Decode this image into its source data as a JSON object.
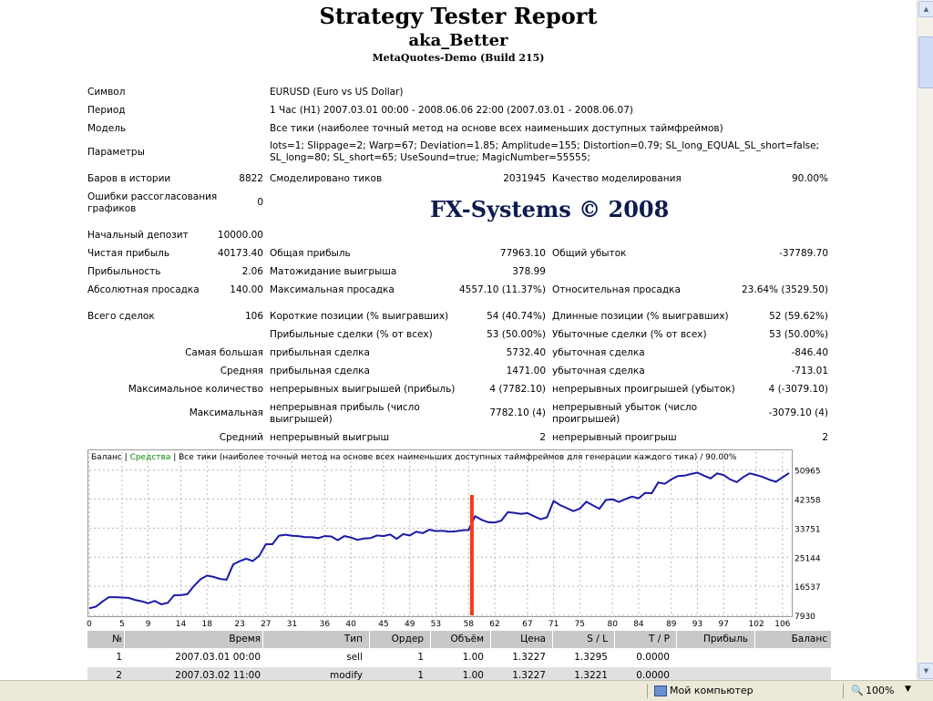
{
  "header": {
    "title": "Strategy Tester Report",
    "ea_name": "aka_Better",
    "build": "MetaQuotes-Demo (Build 215)"
  },
  "watermark": "FX-Systems © 2008",
  "info": {
    "symbol_label": "Символ",
    "symbol_value": "EURUSD (Euro vs US Dollar)",
    "period_label": "Период",
    "period_value": "1 Час (H1) 2007.03.01 00:00 - 2008.06.06 22:00 (2007.03.01 - 2008.06.07)",
    "model_label": "Модель",
    "model_value": "Все тики (наиболее точный метод на основе всех наименьших доступных таймфреймов)",
    "params_label": "Параметры",
    "params_line1": "lots=1; Slippage=2; Warp=67; Deviation=1.85; Amplitude=155; Distortion=0.79; SL_long_EQUAL_SL_short=false;",
    "params_line2": "SL_long=80; SL_short=65; UseSound=true; MagicNumber=55555;"
  },
  "stats": {
    "bars_label": "Баров в истории",
    "bars_value": "8822",
    "ticks_label": "Смоделировано тиков",
    "ticks_value": "2031945",
    "quality_label": "Качество моделирования",
    "quality_value": "90.00%",
    "mismatch_label1": "Ошибки рассогласования",
    "mismatch_label2": "графиков",
    "mismatch_value": "0",
    "deposit_label": "Начальный депозит",
    "deposit_value": "10000.00",
    "net_profit_label": "Чистая прибыль",
    "net_profit_value": "40173.40",
    "gross_profit_label": "Общая прибыль",
    "gross_profit_value": "77963.10",
    "gross_loss_label": "Общий убыток",
    "gross_loss_value": "-37789.70",
    "pf_label": "Прибыльность",
    "pf_value": "2.06",
    "payoff_label": "Матожидание выигрыша",
    "payoff_value": "378.99",
    "abs_dd_label": "Абсолютная просадка",
    "abs_dd_value": "140.00",
    "max_dd_label": "Максимальная просадка",
    "max_dd_value": "4557.10 (11.37%)",
    "rel_dd_label": "Относительная просадка",
    "rel_dd_value": "23.64% (3529.50)",
    "total_trades_label": "Всего сделок",
    "total_trades_value": "106",
    "short_label": "Короткие позиции (% выигравших)",
    "short_value": "54 (40.74%)",
    "long_label": "Длинные позиции (% выигравших)",
    "long_value": "52 (59.62%)",
    "win_trades_label": "Прибыльные сделки (% от всех)",
    "win_trades_value": "53 (50.00%)",
    "loss_trades_label": "Убыточные сделки (% от всех)",
    "loss_trades_value": "53 (50.00%)",
    "largest_label": "Самая большая",
    "largest_profit_label": "прибыльная сделка",
    "largest_profit_value": "5732.40",
    "largest_loss_label": "убыточная сделка",
    "largest_loss_value": "-846.40",
    "average_label": "Средняя",
    "avg_profit_label": "прибыльная сделка",
    "avg_profit_value": "1471.00",
    "avg_loss_label": "убыточная сделка",
    "avg_loss_value": "-713.01",
    "max_count_label": "Максимальное количество",
    "cons_wins_label": "непрерывных выигрышей (прибыль)",
    "cons_wins_value": "4 (7782.10)",
    "cons_losses_label": "непрерывных проигрышей (убыток)",
    "cons_losses_value": "4 (-3079.10)",
    "maximal_label": "Максимальная",
    "cons_profit_label1": "непрерывная прибыль (число",
    "cons_profit_label2": "выигрышей)",
    "cons_profit_value": "7782.10 (4)",
    "cons_loss_label1": "непрерывный убыток (число",
    "cons_loss_label2": "проигрышей)",
    "cons_loss_value": "-3079.10 (4)",
    "avg_label": "Средний",
    "avg_cons_wins_label": "непрерывный выигрыш",
    "avg_cons_wins_value": "2",
    "avg_cons_losses_label": "непрерывный проигрыш",
    "avg_cons_losses_value": "2"
  },
  "chart_data": {
    "type": "line",
    "title_balance": "Баланс",
    "title_sep1": " | ",
    "title_equity": "Средства",
    "title_rest": " | Все тики (наиболее точный метод на основе всех наименьших доступных таймфреймов для генерации каждого тика) / 90.00%",
    "x_ticks": [
      0,
      5,
      9,
      14,
      18,
      23,
      27,
      31,
      36,
      40,
      45,
      49,
      53,
      58,
      62,
      67,
      71,
      75,
      80,
      84,
      89,
      93,
      97,
      102,
      106
    ],
    "y_ticks": [
      7930,
      16537,
      25144,
      33751,
      42358,
      50965
    ],
    "xlim": [
      0,
      107
    ],
    "ylim": [
      7930,
      52500
    ],
    "grid": true,
    "series": [
      {
        "name": "Баланс",
        "color": "#1a1aa8",
        "x": [
          0,
          1,
          2,
          3,
          4,
          5,
          6,
          7,
          8,
          9,
          10,
          11,
          12,
          13,
          14,
          15,
          16,
          17,
          18,
          19,
          20,
          21,
          22,
          23,
          24,
          25,
          26,
          27,
          28,
          29,
          30,
          31,
          32,
          33,
          34,
          35,
          36,
          37,
          38,
          39,
          40,
          41,
          42,
          43,
          44,
          45,
          46,
          47,
          48,
          49,
          50,
          51,
          52,
          53,
          54,
          55,
          56,
          57,
          58,
          59,
          60,
          61,
          62,
          63,
          64,
          65,
          66,
          67,
          68,
          69,
          70,
          71,
          72,
          73,
          74,
          75,
          76,
          77,
          78,
          79,
          80,
          81,
          82,
          83,
          84,
          85,
          86,
          87,
          88,
          89,
          90,
          91,
          92,
          93,
          94,
          95,
          96,
          97,
          98,
          99,
          100,
          101,
          102,
          103,
          104,
          105,
          106,
          107
        ],
        "y": [
          10000,
          10500,
          12000,
          13300,
          13300,
          13200,
          13100,
          12500,
          12100,
          11500,
          12200,
          11200,
          11600,
          13900,
          13900,
          14200,
          16600,
          18600,
          19700,
          19300,
          18700,
          18500,
          23000,
          24000,
          24700,
          24000,
          25600,
          29000,
          29000,
          31500,
          31800,
          31500,
          31400,
          31100,
          31100,
          30800,
          31400,
          31300,
          30200,
          31400,
          31000,
          30300,
          30700,
          30800,
          31600,
          31400,
          31900,
          30600,
          32000,
          31600,
          32700,
          32300,
          33300,
          32900,
          33000,
          32700,
          32800,
          33100,
          33200,
          37300,
          36200,
          35500,
          35400,
          36000,
          38500,
          38300,
          38000,
          38200,
          37300,
          36400,
          37000,
          41800,
          40600,
          39700,
          38800,
          39500,
          41600,
          40500,
          39500,
          42100,
          42300,
          41500,
          42400,
          43100,
          42600,
          44200,
          44100,
          47300,
          46900,
          48200,
          49200,
          49300,
          49800,
          50200,
          49300,
          48500,
          50000,
          49500,
          48200,
          47400,
          48900,
          50000,
          49500,
          48900,
          48100,
          47500,
          48800,
          50100
        ],
        "marker_x": 58.5
      }
    ]
  },
  "table": {
    "headers": [
      "№",
      "Время",
      "Тип",
      "Ордер",
      "Объём",
      "Цена",
      "S / L",
      "T / P",
      "Прибыль",
      "Баланс"
    ],
    "rows": [
      [
        "1",
        "2007.03.01 00:00",
        "sell",
        "1",
        "1.00",
        "1.3227",
        "1.3295",
        "0.0000",
        "",
        ""
      ],
      [
        "2",
        "2007.03.02 11:00",
        "modify",
        "1",
        "1.00",
        "1.3227",
        "1.3221",
        "0.0000",
        "",
        ""
      ]
    ]
  },
  "statusbar": {
    "computer": "Мой компьютер",
    "zoom": "100%"
  },
  "colors": {
    "marker": "#f23a18",
    "grid": "#b8b8b8",
    "header_bg": "#c8c8c8",
    "stripe_bg": "#e0e0e0"
  }
}
